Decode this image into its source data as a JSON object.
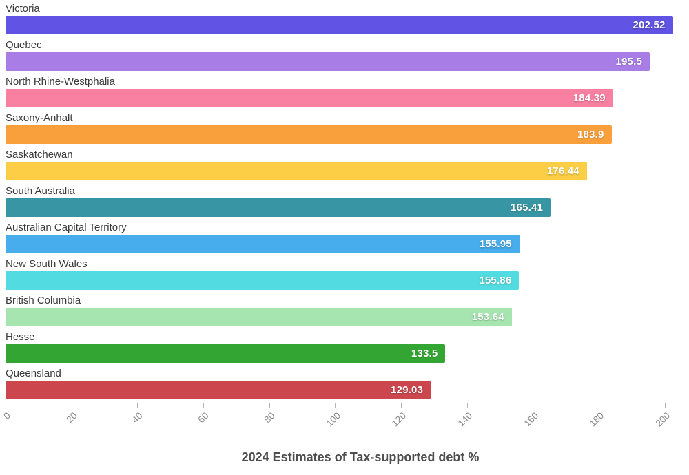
{
  "chart_data": {
    "type": "bar",
    "orientation": "horizontal",
    "title": "2024 Estimates of Tax-supported debt %",
    "xlabel": "2024 Estimates of Tax-supported debt %",
    "ylabel": "",
    "categories": [
      "Victoria",
      "Quebec",
      "North Rhine-Westphalia",
      "Saxony-Anhalt",
      "Saskatchewan",
      "South Australia",
      "Australian Capital Territory",
      "New South Wales",
      "British Columbia",
      "Hesse",
      "Queensland"
    ],
    "values": [
      202.52,
      195.5,
      184.39,
      183.9,
      176.44,
      165.41,
      155.95,
      155.86,
      153.64,
      133.5,
      129.03
    ],
    "value_labels": [
      "202.52",
      "195.5",
      "184.39",
      "183.9",
      "176.44",
      "165.41",
      "155.95",
      "155.86",
      "153.64",
      "133.5",
      "129.03"
    ],
    "bar_colors": [
      "#6153E3",
      "#A97DE6",
      "#FA80A2",
      "#F9A03C",
      "#FBCE45",
      "#3795A4",
      "#47ADEC",
      "#52DBE0",
      "#A6E4B0",
      "#33A532",
      "#CC474D"
    ],
    "x_ticks": [
      0,
      20,
      40,
      60,
      80,
      100,
      120,
      140,
      160,
      180,
      200
    ],
    "x_tick_labels": [
      "0",
      "20",
      "40",
      "60",
      "80",
      "100",
      "120",
      "140",
      "160",
      "180",
      "200"
    ],
    "xlim": [
      0,
      207
    ],
    "grid": false,
    "legend": false,
    "sorted": "descending",
    "colors": {
      "background": "#ffffff",
      "category_label": "#3a3a3a",
      "value_label": "#ffffff",
      "tick_label": "#8a8a8a",
      "tick_mark": "#b5b5b5",
      "title": "#4d4d4d"
    }
  }
}
